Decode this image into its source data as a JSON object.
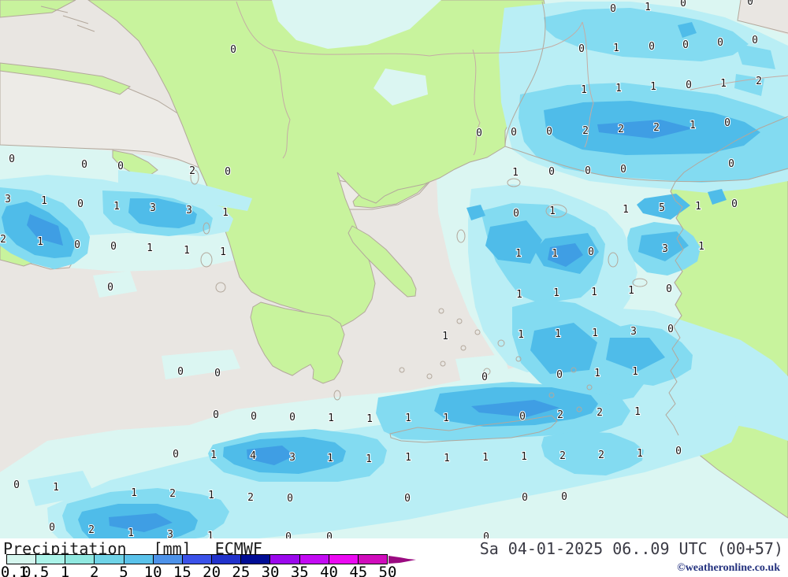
{
  "map": {
    "region": "Greece and Aegean",
    "values": [
      [
        778,
        11,
        "0"
      ],
      [
        822,
        9,
        "1"
      ],
      [
        867,
        4,
        "0"
      ],
      [
        952,
        2,
        "0"
      ],
      [
        296,
        63,
        "0"
      ],
      [
        738,
        62,
        "0"
      ],
      [
        782,
        61,
        "1"
      ],
      [
        827,
        59,
        "0"
      ],
      [
        870,
        57,
        "0"
      ],
      [
        914,
        54,
        "0"
      ],
      [
        958,
        51,
        "0"
      ],
      [
        741,
        114,
        "1"
      ],
      [
        785,
        112,
        "1"
      ],
      [
        829,
        110,
        "1"
      ],
      [
        874,
        108,
        "0"
      ],
      [
        918,
        106,
        "1"
      ],
      [
        963,
        103,
        "2"
      ],
      [
        608,
        169,
        "0"
      ],
      [
        652,
        168,
        "0"
      ],
      [
        697,
        167,
        "0"
      ],
      [
        743,
        166,
        "2"
      ],
      [
        788,
        164,
        "2"
      ],
      [
        833,
        162,
        "2"
      ],
      [
        879,
        159,
        "1"
      ],
      [
        923,
        156,
        "0"
      ],
      [
        15,
        202,
        "0"
      ],
      [
        107,
        209,
        "0"
      ],
      [
        153,
        211,
        "0"
      ],
      [
        244,
        217,
        "2"
      ],
      [
        289,
        218,
        "0"
      ],
      [
        654,
        219,
        "1"
      ],
      [
        700,
        218,
        "0"
      ],
      [
        746,
        217,
        "0"
      ],
      [
        791,
        215,
        "0"
      ],
      [
        928,
        208,
        "0"
      ],
      [
        10,
        253,
        "3"
      ],
      [
        56,
        255,
        "1"
      ],
      [
        102,
        259,
        "0"
      ],
      [
        148,
        262,
        "1"
      ],
      [
        194,
        264,
        "3"
      ],
      [
        240,
        267,
        "3"
      ],
      [
        286,
        270,
        "1"
      ],
      [
        655,
        271,
        "0"
      ],
      [
        701,
        268,
        "1"
      ],
      [
        794,
        266,
        "1"
      ],
      [
        840,
        264,
        "5"
      ],
      [
        886,
        262,
        "1"
      ],
      [
        932,
        259,
        "0"
      ],
      [
        4,
        304,
        "2"
      ],
      [
        51,
        307,
        "1"
      ],
      [
        98,
        311,
        "0"
      ],
      [
        144,
        313,
        "0"
      ],
      [
        190,
        315,
        "1"
      ],
      [
        237,
        318,
        "1"
      ],
      [
        283,
        320,
        "1"
      ],
      [
        658,
        322,
        "1"
      ],
      [
        704,
        322,
        "1"
      ],
      [
        750,
        320,
        "0"
      ],
      [
        844,
        316,
        "3"
      ],
      [
        890,
        313,
        "1"
      ],
      [
        140,
        365,
        "0"
      ],
      [
        659,
        374,
        "1"
      ],
      [
        706,
        372,
        "1"
      ],
      [
        754,
        371,
        "1"
      ],
      [
        801,
        369,
        "1"
      ],
      [
        849,
        367,
        "0"
      ],
      [
        565,
        427,
        "1"
      ],
      [
        661,
        425,
        "1"
      ],
      [
        708,
        424,
        "1"
      ],
      [
        755,
        423,
        "1"
      ],
      [
        804,
        421,
        "3"
      ],
      [
        851,
        418,
        "0"
      ],
      [
        229,
        472,
        "0"
      ],
      [
        276,
        474,
        "0"
      ],
      [
        615,
        479,
        "0"
      ],
      [
        710,
        476,
        "0"
      ],
      [
        758,
        474,
        "1"
      ],
      [
        806,
        472,
        "1"
      ],
      [
        274,
        527,
        "0"
      ],
      [
        322,
        529,
        "0"
      ],
      [
        371,
        530,
        "0"
      ],
      [
        420,
        531,
        "1"
      ],
      [
        469,
        532,
        "1"
      ],
      [
        518,
        531,
        "1"
      ],
      [
        566,
        531,
        "1"
      ],
      [
        663,
        529,
        "0"
      ],
      [
        711,
        527,
        "2"
      ],
      [
        761,
        524,
        "2"
      ],
      [
        809,
        523,
        "1"
      ],
      [
        223,
        577,
        "0"
      ],
      [
        271,
        578,
        "1"
      ],
      [
        321,
        579,
        "4"
      ],
      [
        371,
        581,
        "3"
      ],
      [
        419,
        582,
        "1"
      ],
      [
        468,
        583,
        "1"
      ],
      [
        518,
        581,
        "1"
      ],
      [
        567,
        582,
        "1"
      ],
      [
        616,
        581,
        "1"
      ],
      [
        665,
        580,
        "1"
      ],
      [
        714,
        579,
        "2"
      ],
      [
        763,
        578,
        "2"
      ],
      [
        812,
        576,
        "1"
      ],
      [
        861,
        573,
        "0"
      ],
      [
        21,
        616,
        "0"
      ],
      [
        71,
        619,
        "1"
      ],
      [
        170,
        626,
        "1"
      ],
      [
        219,
        627,
        "2"
      ],
      [
        268,
        629,
        "1"
      ],
      [
        318,
        632,
        "2"
      ],
      [
        368,
        633,
        "0"
      ],
      [
        517,
        633,
        "0"
      ],
      [
        666,
        632,
        "0"
      ],
      [
        716,
        631,
        "0"
      ],
      [
        66,
        670,
        "0"
      ],
      [
        116,
        673,
        "2"
      ],
      [
        166,
        677,
        "1"
      ],
      [
        216,
        679,
        "3"
      ],
      [
        267,
        681,
        "1"
      ],
      [
        366,
        682,
        "0"
      ],
      [
        418,
        682,
        "0"
      ],
      [
        617,
        682,
        "0"
      ]
    ]
  },
  "legend": {
    "title": "Precipitation",
    "unit": "[mm]",
    "model": "ECMWF",
    "datetime": "Sa 04-01-2025 06..09 UTC (00+57)",
    "copyright": "©weatheronline.co.uk",
    "scale": {
      "labels": [
        "0.1",
        "0.5",
        "1",
        "2",
        "5",
        "10",
        "15",
        "20",
        "25",
        "30",
        "35",
        "40",
        "45",
        "50"
      ]
    }
  },
  "colors": {
    "sea": "#e9e6e2",
    "land": "#c8f39d",
    "out_of_region_land": "#edebe7",
    "precip_trace": "#dbf6f2",
    "precip_light": "#b9eef5",
    "precip_moderate": "#83dbf1",
    "precip_heavy": "#4fbce9",
    "precip_intense": "#3f9ee4",
    "coastline": "#b3a89c",
    "border": "#c4aca4",
    "value_text": "#141414",
    "title_text": "#1c1c1c",
    "date_text": "#3a3a44",
    "copyright_text": "#23317e",
    "scale_colors": [
      "#d5f6ee",
      "#abf3e9",
      "#90e8e0",
      "#6fd3e7",
      "#5ac2ea",
      "#4d92e9",
      "#3b52e9",
      "#2132cb",
      "#010d95",
      "#9b09ed",
      "#c30bf3",
      "#eb0af2",
      "#d00cbc"
    ],
    "scale_arrow": "#9a0a80"
  }
}
